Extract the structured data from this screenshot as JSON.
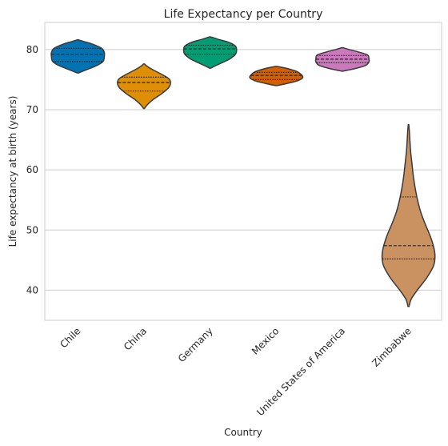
{
  "chart_data": {
    "type": "violin",
    "title": "Life Expectancy per Country",
    "xlabel": "Country",
    "ylabel": "Life expectancy at birth (years)",
    "ylim": [
      35,
      84.5
    ],
    "yticks": [
      40,
      50,
      60,
      70,
      80
    ],
    "grid": "horizontal",
    "categories": [
      "Chile",
      "China",
      "Germany",
      "Mexico",
      "United States of America",
      "Zimbabwe"
    ],
    "series": [
      {
        "category": "Chile",
        "color": "#0173b2",
        "min": 76.1,
        "max": 81.6,
        "quartiles": [
          78.0,
          79.2,
          80.2
        ],
        "density": [
          [
            76.1,
            0.02
          ],
          [
            76.6,
            0.3
          ],
          [
            77.3,
            0.7
          ],
          [
            78.0,
            0.95
          ],
          [
            78.8,
            1.0
          ],
          [
            79.5,
            1.0
          ],
          [
            80.2,
            0.9
          ],
          [
            80.9,
            0.55
          ],
          [
            81.3,
            0.25
          ],
          [
            81.6,
            0.02
          ]
        ]
      },
      {
        "category": "China",
        "color": "#de8f05",
        "min": 70.2,
        "max": 77.6,
        "quartiles": [
          73.1,
          74.5,
          75.4
        ],
        "density": [
          [
            70.2,
            0.02
          ],
          [
            70.8,
            0.12
          ],
          [
            71.7,
            0.35
          ],
          [
            72.6,
            0.65
          ],
          [
            73.5,
            0.9
          ],
          [
            74.3,
            1.0
          ],
          [
            75.1,
            0.95
          ],
          [
            75.8,
            0.7
          ],
          [
            76.6,
            0.35
          ],
          [
            77.2,
            0.12
          ],
          [
            77.6,
            0.02
          ]
        ]
      },
      {
        "category": "Germany",
        "color": "#029e73",
        "min": 76.9,
        "max": 82.1,
        "quartiles": [
          79.2,
          80.1,
          80.7
        ],
        "density": [
          [
            76.9,
            0.02
          ],
          [
            77.4,
            0.25
          ],
          [
            78.0,
            0.55
          ],
          [
            78.6,
            0.8
          ],
          [
            79.3,
            0.97
          ],
          [
            80.0,
            1.0
          ],
          [
            80.6,
            0.95
          ],
          [
            81.2,
            0.7
          ],
          [
            81.7,
            0.3
          ],
          [
            82.1,
            0.02
          ]
        ]
      },
      {
        "category": "Mexico",
        "color": "#d55e00",
        "min": 74.0,
        "max": 77.2,
        "quartiles": [
          75.0,
          75.7,
          76.2
        ],
        "density": [
          [
            74.0,
            0.02
          ],
          [
            74.3,
            0.35
          ],
          [
            74.8,
            0.8
          ],
          [
            75.3,
            1.0
          ],
          [
            75.8,
            0.95
          ],
          [
            76.3,
            0.8
          ],
          [
            76.8,
            0.45
          ],
          [
            77.2,
            0.02
          ]
        ]
      },
      {
        "category": "United States of America",
        "color": "#cc78bc",
        "min": 76.4,
        "max": 80.3,
        "quartiles": [
          77.8,
          78.4,
          79.0
        ],
        "density": [
          [
            76.4,
            0.02
          ],
          [
            76.8,
            0.45
          ],
          [
            77.3,
            0.85
          ],
          [
            77.9,
            1.0
          ],
          [
            78.5,
            1.0
          ],
          [
            79.1,
            0.95
          ],
          [
            79.6,
            0.6
          ],
          [
            80.0,
            0.25
          ],
          [
            80.3,
            0.02
          ]
        ]
      },
      {
        "category": "Zimbabwe",
        "color": "#ca9161",
        "min": 37.3,
        "max": 67.5,
        "quartiles": [
          45.2,
          47.4,
          55.5
        ],
        "density": [
          [
            37.3,
            0.02
          ],
          [
            38.5,
            0.1
          ],
          [
            40.0,
            0.33
          ],
          [
            42.0,
            0.68
          ],
          [
            44.0,
            0.94
          ],
          [
            45.5,
            1.0
          ],
          [
            47.0,
            0.96
          ],
          [
            49.0,
            0.82
          ],
          [
            51.0,
            0.63
          ],
          [
            53.0,
            0.46
          ],
          [
            55.0,
            0.34
          ],
          [
            57.0,
            0.25
          ],
          [
            59.0,
            0.18
          ],
          [
            61.0,
            0.13
          ],
          [
            63.0,
            0.08
          ],
          [
            65.0,
            0.05
          ],
          [
            66.5,
            0.03
          ],
          [
            67.5,
            0.01
          ]
        ]
      }
    ]
  }
}
